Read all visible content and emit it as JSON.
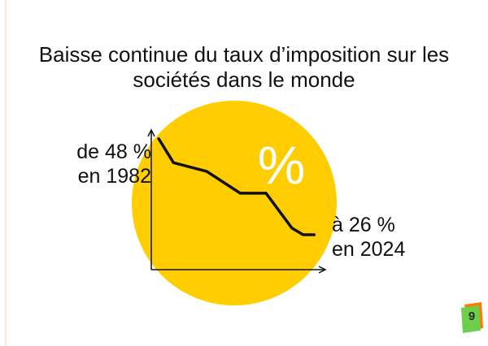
{
  "colors": {
    "circle": "#ffcd00",
    "line": "#111111",
    "axis": "#111111",
    "badge_back": "#ff7a00",
    "badge_front": "#6ccf4c"
  },
  "title": {
    "line1": "Baisse continue du taux d’imposition sur les",
    "line2": "sociétés dans le monde"
  },
  "symbol": "%",
  "annotations": {
    "start_line1": "de 48 %",
    "start_line2": "en 1982",
    "end_line1": "à 26 %",
    "end_line2": "en 2024"
  },
  "page_number": "9",
  "chart_data": {
    "type": "line",
    "title": "Baisse continue du taux d’imposition sur les sociétés dans le monde",
    "xlabel": "",
    "ylabel": "",
    "grid": false,
    "x": [
      1982,
      1986,
      1995,
      2004,
      2011,
      2018,
      2021,
      2024
    ],
    "values": [
      48,
      42.5,
      40.5,
      35.5,
      35.5,
      27.5,
      26,
      26
    ],
    "xlim": [
      1980,
      2027
    ],
    "ylim": [
      18,
      50
    ]
  }
}
